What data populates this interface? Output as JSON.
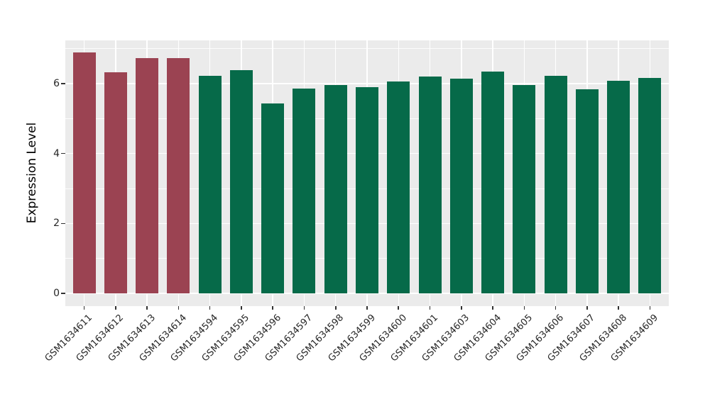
{
  "chart_data": {
    "type": "bar",
    "title": "",
    "xlabel": "",
    "ylabel": "Expression Level",
    "categories": [
      "GSM1634611",
      "GSM1634612",
      "GSM1634613",
      "GSM1634614",
      "GSM1634594",
      "GSM1634595",
      "GSM1634596",
      "GSM1634597",
      "GSM1634598",
      "GSM1634599",
      "GSM1634600",
      "GSM1634601",
      "GSM1634603",
      "GSM1634604",
      "GSM1634605",
      "GSM1634606",
      "GSM1634607",
      "GSM1634608",
      "GSM1634609"
    ],
    "values": [
      6.9,
      6.33,
      6.74,
      6.74,
      6.22,
      6.38,
      5.44,
      5.86,
      5.96,
      5.9,
      6.06,
      6.21,
      6.15,
      6.35,
      5.96,
      6.23,
      5.84,
      6.08,
      6.16
    ],
    "bar_colors": [
      "#9B4352",
      "#9B4352",
      "#9B4352",
      "#9B4352",
      "#066A49",
      "#066A49",
      "#066A49",
      "#066A49",
      "#066A49",
      "#066A49",
      "#066A49",
      "#066A49",
      "#066A49",
      "#066A49",
      "#066A49",
      "#066A49",
      "#066A49",
      "#066A49",
      "#066A49"
    ],
    "palette": {
      "red": "#9B4352",
      "green": "#066A49"
    },
    "yticks": [
      0,
      2,
      4,
      6
    ],
    "ytick_labels": [
      "0",
      "2",
      "4",
      "6"
    ],
    "minor_yticks": [
      1,
      3,
      5,
      7
    ],
    "ylim": [
      0,
      7.25
    ],
    "grid": true,
    "legend": false,
    "panel_bg": "#EBEBEB",
    "grid_color": "#FFFFFF",
    "tick_mark_color": "#333333",
    "axis_text_color": "#262626",
    "axis_title_color": "#000000"
  }
}
